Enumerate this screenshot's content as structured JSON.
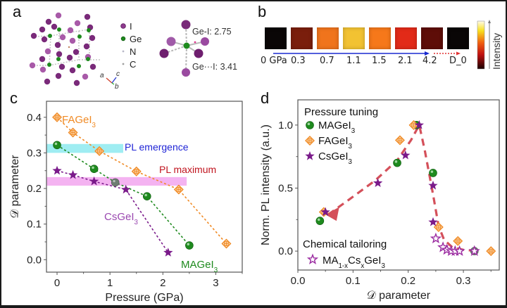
{
  "panels": {
    "a": {
      "label": "a",
      "legend": [
        {
          "name": "I",
          "color": "#8e3a8e"
        },
        {
          "name": "Ge",
          "color": "#1e8a1e"
        },
        {
          "name": "N",
          "color": "#b8b8c8"
        },
        {
          "name": "C",
          "color": "#a0a0a0"
        }
      ],
      "axes": {
        "a": "a",
        "b": "b",
        "c": "c"
      },
      "bond_labels": [
        "Ge-I: 2.75",
        "Ge···I: 3.41"
      ]
    },
    "b": {
      "label": "b",
      "pressures": [
        "0 GPa",
        "0.3",
        "0.7",
        "1.1",
        "1.5",
        "2.1",
        "4.2",
        "D_0"
      ],
      "heatmap_colors": [
        "#0a0606",
        "#7a1e0c",
        "#f0741c",
        "#f2c232",
        "#f6781a",
        "#e22a18",
        "#5e0d08",
        "#0a0606"
      ],
      "colorbar_label": "Intensity"
    },
    "c": {
      "label": "c"
    },
    "d": {
      "label": "d"
    }
  },
  "chart_data": [
    {
      "type": "scatter",
      "panel": "c",
      "xlabel": "Pressure (GPa)",
      "ylabel": "𝒟 parameter",
      "xlim": [
        -0.2,
        3.5
      ],
      "ylim": [
        -0.035,
        0.445
      ],
      "xticks": [
        0,
        1,
        2,
        3
      ],
      "yticks": [
        0.0,
        0.1,
        0.2,
        0.3,
        0.4
      ],
      "grid": false,
      "annotations": [
        {
          "text": "PL emergence",
          "color": "#1f24d6",
          "band_y": [
            0.3,
            0.325
          ],
          "band_x": [
            -0.2,
            1.25
          ],
          "band_color": "#8eeaf0"
        },
        {
          "text": "PL maximum",
          "color": "#c0141e",
          "band_y": [
            0.208,
            0.232
          ],
          "band_x": [
            -0.2,
            2.45
          ],
          "band_color": "#f2a6ee"
        }
      ],
      "series": [
        {
          "name": "FAGeI3",
          "color": "#f08a24",
          "marker": "crossed-diamond",
          "x": [
            0,
            0.3,
            0.8,
            1.5,
            2.3,
            3.2
          ],
          "y": [
            0.4,
            0.357,
            0.305,
            0.248,
            0.197,
            0.045
          ]
        },
        {
          "name": "MAGeI3",
          "color": "#1e8a1e",
          "marker": "sphere",
          "x": [
            0,
            0.7,
            1.1,
            1.7,
            2.5
          ],
          "y": [
            0.322,
            0.255,
            0.217,
            0.178,
            0.04
          ]
        },
        {
          "name": "CsGeI3",
          "color": "#7a1a8a",
          "marker": "star",
          "x": [
            0,
            0.3,
            0.7,
            1.3,
            2.1
          ],
          "y": [
            0.25,
            0.238,
            0.22,
            0.197,
            0.02
          ]
        }
      ],
      "series_labels": [
        {
          "name": "FAGeI3",
          "text": "FAGeI",
          "sub": "3",
          "color": "#f08a24"
        },
        {
          "name": "CsGeI3",
          "text": "CsGeI",
          "sub": "3",
          "color": "#9a48b0"
        },
        {
          "name": "MAGeI3",
          "text": "MAGeI",
          "sub": "3",
          "color": "#1e8a1e"
        }
      ]
    },
    {
      "type": "scatter",
      "panel": "d",
      "xlabel": "𝒟 parameter",
      "ylabel": "Norm. PL intensity (a.u.)",
      "xlim": [
        0.0,
        0.365
      ],
      "ylim": [
        -0.15,
        1.2
      ],
      "xticks": [
        0.0,
        0.1,
        0.2,
        0.3
      ],
      "yticks": [
        0.0,
        0.5,
        1.0
      ],
      "grid": false,
      "legend_titles": [
        "Pressure tuning",
        "Chemical tailoring"
      ],
      "legend": [
        {
          "name": "MAGeI3",
          "text": "MAGeI",
          "sub": "3",
          "marker": "sphere",
          "color": "#1e8a1e"
        },
        {
          "name": "FAGeI3",
          "text": "FAGeI",
          "sub": "3",
          "marker": "crossed-diamond",
          "color": "#f08a24"
        },
        {
          "name": "CsGeI3",
          "text": "CsGeI",
          "sub": "3",
          "marker": "star",
          "color": "#7a1a8a"
        },
        {
          "name": "MA1-xCsxGeI3",
          "text": "MA",
          "sub1": "1-x",
          "mid": "Cs",
          "sub2": "x",
          "tail": "GeI",
          "sub3": "3",
          "marker": "open-star",
          "color": "#9a2aa0"
        }
      ],
      "trend_line": {
        "color": "#d4505a",
        "x": [
          0.055,
          0.09,
          0.14,
          0.18,
          0.205,
          0.22,
          0.23,
          0.245,
          0.255,
          0.265,
          0.28,
          0.3,
          0.33
        ],
        "y": [
          0.29,
          0.4,
          0.56,
          0.72,
          0.88,
          1.0,
          0.8,
          0.45,
          0.2,
          0.09,
          0.03,
          0.01,
          0.0
        ]
      },
      "series": [
        {
          "name": "MAGeI3",
          "marker": "sphere",
          "color": "#1e8a1e",
          "x": [
            0.04,
            0.18,
            0.215,
            0.245,
            0.32
          ],
          "y": [
            0.24,
            0.7,
            1.0,
            0.62,
            0.0
          ]
        },
        {
          "name": "FAGeI3",
          "marker": "crossed-diamond",
          "color": "#f08a24",
          "x": [
            0.047,
            0.185,
            0.21,
            0.255,
            0.29,
            0.35
          ],
          "y": [
            0.31,
            0.88,
            1.0,
            0.19,
            0.08,
            0.0
          ]
        },
        {
          "name": "CsGeI3",
          "marker": "star",
          "color": "#7a1a8a",
          "x": [
            0.05,
            0.145,
            0.195,
            0.22,
            0.245,
            0.245
          ],
          "y": [
            0.31,
            0.54,
            0.76,
            1.0,
            0.52,
            0.23
          ]
        },
        {
          "name": "MA1-xCsxGeI3",
          "marker": "open-star",
          "color": "#9a2aa0",
          "x": [
            0.25,
            0.263,
            0.27,
            0.278,
            0.285,
            0.293,
            0.32
          ],
          "y": [
            0.1,
            0.03,
            0.01,
            0.0,
            0.0,
            0.0,
            0.0
          ]
        }
      ]
    }
  ]
}
